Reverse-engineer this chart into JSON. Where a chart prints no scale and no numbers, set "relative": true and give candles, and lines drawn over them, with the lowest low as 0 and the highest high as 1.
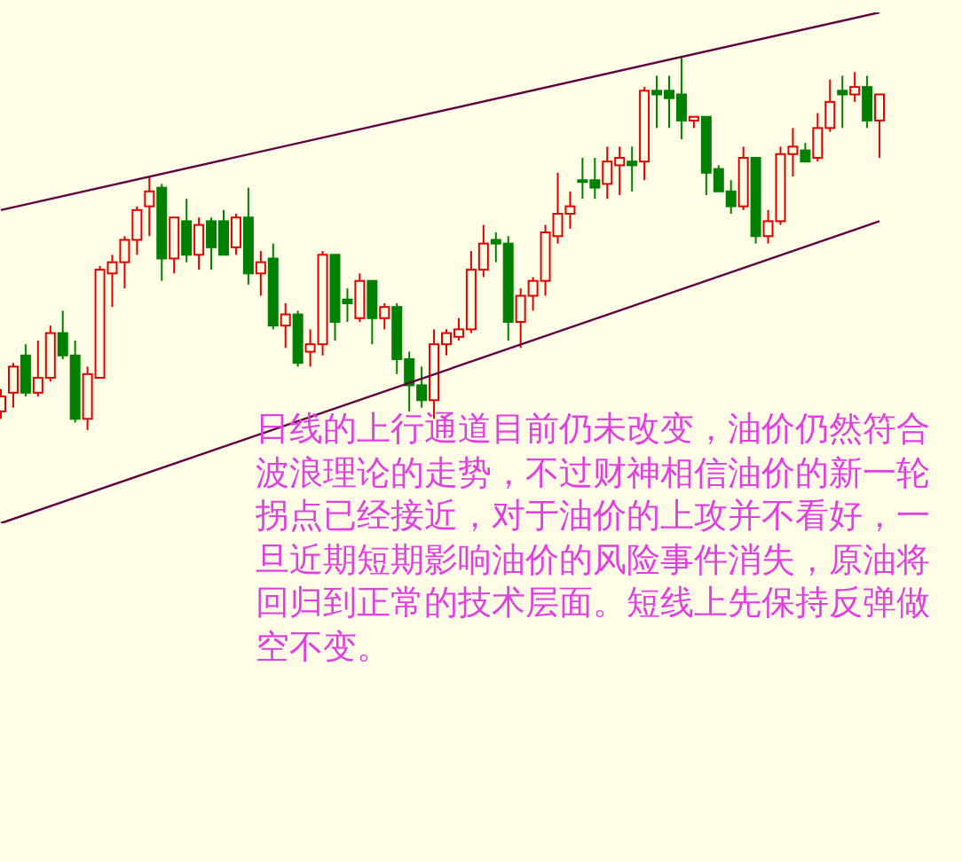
{
  "chart_data": {
    "type": "candlestick",
    "relative": true,
    "tick_labels": false,
    "grid": false,
    "legend": false,
    "categories": [
      null,
      null,
      null,
      null,
      null,
      null,
      null,
      null,
      null,
      null,
      null,
      null,
      null,
      null,
      null,
      null,
      null,
      null,
      null,
      null,
      null,
      null,
      null,
      null,
      null,
      null,
      null,
      null,
      null,
      null,
      null,
      null,
      null,
      null,
      null,
      null,
      null,
      null,
      null,
      null,
      null,
      null,
      null,
      null,
      null,
      null,
      null,
      null,
      null,
      null,
      null,
      null,
      null,
      null,
      null,
      null,
      null,
      null,
      null,
      null,
      null,
      null,
      null,
      null,
      null,
      null,
      null,
      null,
      null,
      null,
      null,
      null
    ],
    "ohlc": [
      [
        0.05,
        0.11,
        0.03,
        0.09
      ],
      [
        0.1,
        0.18,
        0.06,
        0.17
      ],
      [
        0.2,
        0.23,
        0.09,
        0.1
      ],
      [
        0.1,
        0.24,
        0.09,
        0.14
      ],
      [
        0.14,
        0.28,
        0.13,
        0.26
      ],
      [
        0.26,
        0.32,
        0.19,
        0.2
      ],
      [
        0.2,
        0.24,
        0.02,
        0.03
      ],
      [
        0.03,
        0.17,
        0,
        0.15
      ],
      [
        0.14,
        0.44,
        0.14,
        0.43
      ],
      [
        0.42,
        0.47,
        0.33,
        0.45
      ],
      [
        0.45,
        0.52,
        0.38,
        0.51
      ],
      [
        0.51,
        0.6,
        0.47,
        0.59
      ],
      [
        0.6,
        0.68,
        0.52,
        0.64
      ],
      [
        0.65,
        0.66,
        0.4,
        0.46
      ],
      [
        0.46,
        0.57,
        0.42,
        0.57
      ],
      [
        0.56,
        0.62,
        0.45,
        0.47
      ],
      [
        0.47,
        0.57,
        0.43,
        0.55
      ],
      [
        0.56,
        0.57,
        0.43,
        0.49
      ],
      [
        0.56,
        0.59,
        0.47,
        0.47
      ],
      [
        0.49,
        0.58,
        0.47,
        0.57
      ],
      [
        0.57,
        0.65,
        0.39,
        0.42
      ],
      [
        0.42,
        0.48,
        0.36,
        0.45
      ],
      [
        0.46,
        0.5,
        0.27,
        0.28
      ],
      [
        0.28,
        0.34,
        0.22,
        0.31
      ],
      [
        0.31,
        0.32,
        0.17,
        0.18
      ],
      [
        0.21,
        0.27,
        0.17,
        0.23
      ],
      [
        0.23,
        0.48,
        0.2,
        0.47
      ],
      [
        0.47,
        0.47,
        0.24,
        0.29
      ],
      [
        0.35,
        0.38,
        0.29,
        0.34
      ],
      [
        0.3,
        0.42,
        0.29,
        0.4
      ],
      [
        0.4,
        0.4,
        0.23,
        0.3
      ],
      [
        0.3,
        0.34,
        0.27,
        0.33
      ],
      [
        0.33,
        0.34,
        0.15,
        0.19
      ],
      [
        0.19,
        0.21,
        0.05,
        0.12
      ],
      [
        0.12,
        0.17,
        0.06,
        0.08
      ],
      [
        0.08,
        0.27,
        0.03,
        0.23
      ],
      [
        0.23,
        0.27,
        0.2,
        0.26
      ],
      [
        0.25,
        0.3,
        0.24,
        0.27
      ],
      [
        0.27,
        0.48,
        0.26,
        0.43
      ],
      [
        0.43,
        0.55,
        0.41,
        0.5
      ],
      [
        0.51,
        0.53,
        0.45,
        0.5
      ],
      [
        0.5,
        0.52,
        0.24,
        0.29
      ],
      [
        0.29,
        0.38,
        0.22,
        0.36
      ],
      [
        0.36,
        0.41,
        0.32,
        0.4
      ],
      [
        0.4,
        0.55,
        0.36,
        0.53
      ],
      [
        0.52,
        0.69,
        0.5,
        0.58
      ],
      [
        0.58,
        0.64,
        0.54,
        0.6
      ],
      [
        0.67,
        0.73,
        0.62,
        0.67
      ],
      [
        0.67,
        0.73,
        0.62,
        0.65
      ],
      [
        0.66,
        0.76,
        0.62,
        0.72
      ],
      [
        0.71,
        0.76,
        0.63,
        0.73
      ],
      [
        0.72,
        0.76,
        0.64,
        0.71
      ],
      [
        0.72,
        0.92,
        0.67,
        0.91
      ],
      [
        0.91,
        0.95,
        0.81,
        0.9
      ],
      [
        0.91,
        0.95,
        0.81,
        0.89
      ],
      [
        0.9,
        1,
        0.78,
        0.83
      ],
      [
        0.83,
        0.84,
        0.81,
        0.84
      ],
      [
        0.84,
        0.84,
        0.63,
        0.69
      ],
      [
        0.7,
        0.71,
        0.64,
        0.64
      ],
      [
        0.64,
        0.67,
        0.58,
        0.6
      ],
      [
        0.6,
        0.76,
        0.59,
        0.73
      ],
      [
        0.73,
        0.73,
        0.5,
        0.52
      ],
      [
        0.52,
        0.59,
        0.5,
        0.56
      ],
      [
        0.56,
        0.76,
        0.55,
        0.74
      ],
      [
        0.74,
        0.81,
        0.68,
        0.76
      ],
      [
        0.75,
        0.77,
        0.72,
        0.72
      ],
      [
        0.73,
        0.85,
        0.72,
        0.81
      ],
      [
        0.81,
        0.94,
        0.8,
        0.88
      ],
      [
        0.91,
        0.95,
        0.81,
        0.9
      ],
      [
        0.9,
        0.96,
        0.88,
        0.92
      ],
      [
        0.92,
        0.95,
        0.81,
        0.83
      ],
      [
        0.83,
        0.9,
        0.73,
        0.9
      ]
    ],
    "colors": [
      "#e00000",
      "#e00000",
      "#008000",
      "#e00000",
      "#e00000",
      "#008000",
      "#008000",
      "#e00000",
      "#e00000",
      "#e00000",
      "#e00000",
      "#e00000",
      "#e00000",
      "#008000",
      "#e00000",
      "#008000",
      "#e00000",
      "#008000",
      "#008000",
      "#e00000",
      "#008000",
      "#e00000",
      "#008000",
      "#e00000",
      "#008000",
      "#e00000",
      "#e00000",
      "#008000",
      "#008000",
      "#e00000",
      "#008000",
      "#e00000",
      "#008000",
      "#008000",
      "#008000",
      "#e00000",
      "#e00000",
      "#e00000",
      "#e00000",
      "#e00000",
      "#008000",
      "#008000",
      "#e00000",
      "#e00000",
      "#e00000",
      "#e00000",
      "#e00000",
      "#008000",
      "#008000",
      "#e00000",
      "#e00000",
      "#008000",
      "#e00000",
      "#008000",
      "#008000",
      "#008000",
      "#e00000",
      "#008000",
      "#008000",
      "#008000",
      "#e00000",
      "#008000",
      "#e00000",
      "#e00000",
      "#e00000",
      "#008000",
      "#e00000",
      "#e00000",
      "#008000",
      "#e00000",
      "#008000",
      "#e00000"
    ],
    "series": [
      {
        "type": "line",
        "color": "#600040",
        "values": [
          0.59,
          null,
          null,
          null,
          null,
          null,
          null,
          null,
          null,
          null,
          null,
          null,
          null,
          null,
          null,
          null,
          null,
          null,
          null,
          null,
          null,
          null,
          null,
          null,
          null,
          null,
          null,
          null,
          null,
          null,
          null,
          null,
          null,
          null,
          null,
          null,
          null,
          null,
          null,
          null,
          null,
          null,
          null,
          null,
          null,
          null,
          null,
          null,
          null,
          null,
          null,
          null,
          null,
          null,
          null,
          null,
          null,
          null,
          null,
          null,
          null,
          null,
          null,
          null,
          null,
          null,
          null,
          null,
          null,
          null,
          null,
          1.12
        ]
      },
      {
        "type": "line",
        "color": "#600040",
        "values": [
          -0.25,
          null,
          null,
          null,
          null,
          null,
          null,
          null,
          null,
          null,
          null,
          null,
          null,
          null,
          null,
          null,
          null,
          null,
          null,
          null,
          null,
          null,
          null,
          null,
          null,
          null,
          null,
          null,
          null,
          null,
          null,
          null,
          null,
          null,
          null,
          null,
          null,
          null,
          null,
          null,
          null,
          null,
          null,
          null,
          null,
          null,
          null,
          null,
          null,
          null,
          null,
          null,
          null,
          null,
          null,
          null,
          null,
          null,
          null,
          null,
          null,
          null,
          null,
          null,
          null,
          null,
          null,
          null,
          null,
          null,
          null,
          0.56
        ]
      }
    ],
    "annotations": [
      "日线的上行通道目前仍未改变，油价仍然符合波浪理论的走势，不过财神相信油价的新一轮拐点已经接近，对于油价的上攻并不看好，一旦近期短期影响油价的风险事件消失，原油将回归到正常的技术层面。短线上先保持反弹做空不变。"
    ]
  }
}
